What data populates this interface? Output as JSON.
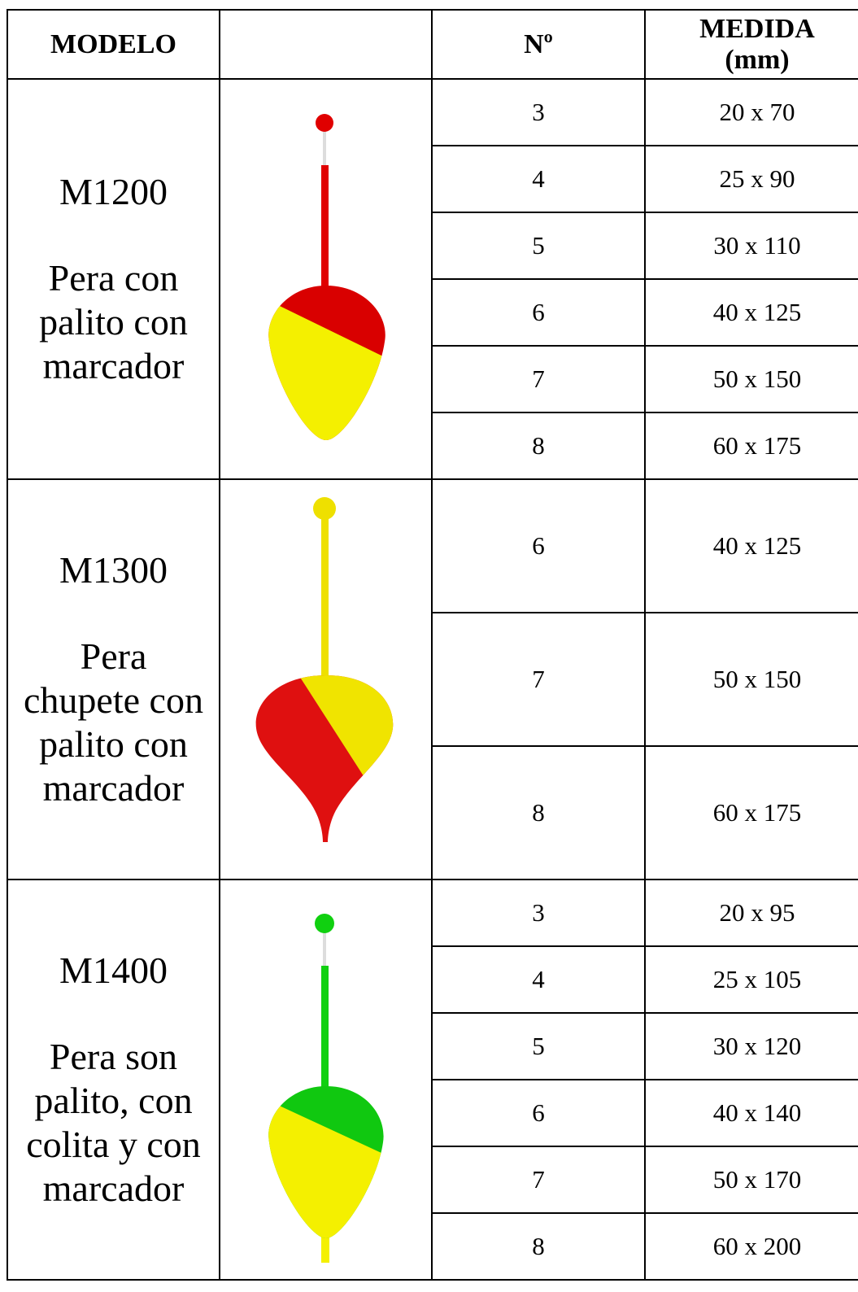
{
  "header": {
    "modelo": "MODELO",
    "numero": "Nº",
    "medida": "MEDIDA\n(mm)"
  },
  "models": [
    {
      "model": "M1200",
      "description": "Pera con palito con marcador",
      "rows": [
        {
          "numero": 3,
          "medida": "20 x 70"
        },
        {
          "numero": 4,
          "medida": "25 x 90"
        },
        {
          "numero": 5,
          "medida": "30 x 110"
        },
        {
          "numero": 6,
          "medida": "40 x 125"
        },
        {
          "numero": 7,
          "medida": "50 x 150"
        },
        {
          "numero": 8,
          "medida": "60 x 175"
        }
      ]
    },
    {
      "model": "M1300",
      "description": "Pera chupete con palito con marcador",
      "rows": [
        {
          "numero": 6,
          "medida": "40 x 125"
        },
        {
          "numero": 7,
          "medida": "50 x 150"
        },
        {
          "numero": 8,
          "medida": "60 x 175"
        }
      ]
    },
    {
      "model": "M1400",
      "description": "Pera son palito, con colita y con marcador",
      "rows": [
        {
          "numero": 3,
          "medida": "20 x 95"
        },
        {
          "numero": 4,
          "medida": "25 x 105"
        },
        {
          "numero": 5,
          "medida": "30 x 120"
        },
        {
          "numero": 6,
          "medida": "40 x 140"
        },
        {
          "numero": 7,
          "medida": "50 x 170"
        },
        {
          "numero": 8,
          "medida": "60 x 200"
        }
      ]
    }
  ]
}
